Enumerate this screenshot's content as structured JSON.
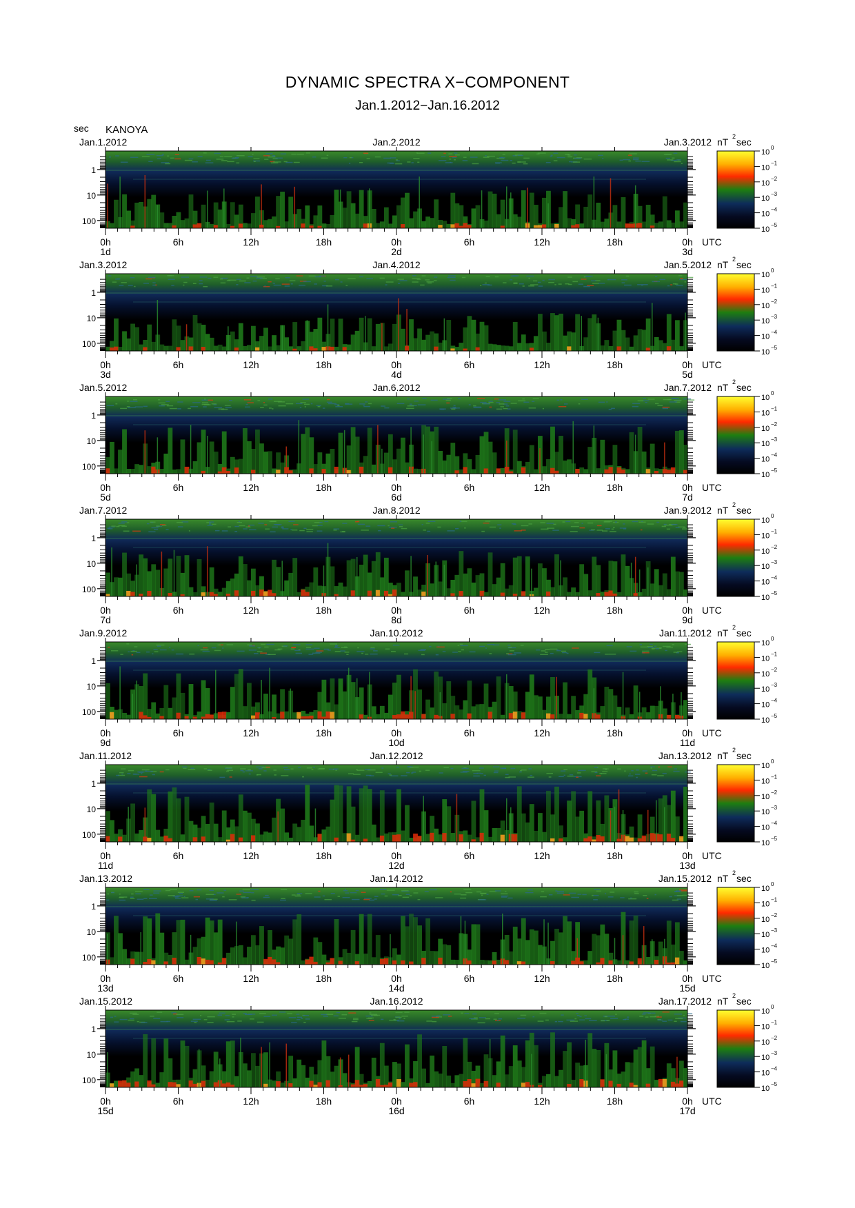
{
  "header": {
    "title": "DYNAMIC SPECTRA X−COMPONENT",
    "subtitle": "Jan.1.2012−Jan.16.2012",
    "y_unit": "sec",
    "station": "KANOYA"
  },
  "chart_data": {
    "type": "heatmap",
    "y_axis": {
      "label": "sec",
      "scale": "log",
      "ticks": [
        "1",
        "10",
        "100"
      ]
    },
    "x_axis": {
      "ticks": [
        "0h",
        "6h",
        "12h",
        "18h",
        "0h",
        "6h",
        "12h",
        "18h",
        "0h"
      ],
      "unit": "UTC"
    },
    "colorbar": {
      "unit": "nT²sec",
      "unit_base": "nT",
      "unit_sup": "2",
      "unit_tail": "sec",
      "ticks": [
        "−10⁰",
        "10⁻¹",
        "10⁻²",
        "10⁻³",
        "10⁻⁴",
        "10⁻⁵"
      ],
      "tick_base": "10",
      "tick_exps": [
        "0",
        "−1",
        "−2",
        "−3",
        "−4",
        "−5"
      ],
      "colors": [
        "#ffff00",
        "#ff9a00",
        "#ff1a00",
        "#1a7a00",
        "#0a1a40",
        "#000000"
      ]
    },
    "panels": [
      {
        "date_left": "Jan.1.2012",
        "date_mid": "Jan.2.2012",
        "date_right": "Jan.3.2012",
        "day_labels": [
          "1d",
          "2d",
          "3d"
        ],
        "activity": 0.35
      },
      {
        "date_left": "Jan.3.2012",
        "date_mid": "Jan.4.2012",
        "date_right": "Jan.5.2012",
        "day_labels": [
          "3d",
          "4d",
          "5d"
        ],
        "activity": 0.3
      },
      {
        "date_left": "Jan.5.2012",
        "date_mid": "Jan.6.2012",
        "date_right": "Jan.7.2012",
        "day_labels": [
          "5d",
          "6d",
          "7d"
        ],
        "activity": 0.55
      },
      {
        "date_left": "Jan.7.2012",
        "date_mid": "Jan.8.2012",
        "date_right": "Jan.9.2012",
        "day_labels": [
          "7d",
          "8d",
          "9d"
        ],
        "activity": 0.5
      },
      {
        "date_left": "Jan.9.2012",
        "date_mid": "Jan.10.2012",
        "date_right": "Jan.11.2012",
        "day_labels": [
          "9d",
          "10d",
          "11d"
        ],
        "activity": 0.6
      },
      {
        "date_left": "Jan.11.2012",
        "date_mid": "Jan.12.2012",
        "date_right": "Jan.13.2012",
        "day_labels": [
          "11d",
          "12d",
          "13d"
        ],
        "activity": 0.75
      },
      {
        "date_left": "Jan.13.2012",
        "date_mid": "Jan.14.2012",
        "date_right": "Jan.15.2012",
        "day_labels": [
          "13d",
          "14d",
          "15d"
        ],
        "activity": 0.65
      },
      {
        "date_left": "Jan.15.2012",
        "date_mid": "Jan.16.2012",
        "date_right": "Jan.17.2012",
        "day_labels": [
          "15d",
          "16d",
          "17d"
        ],
        "activity": 0.7
      }
    ]
  }
}
